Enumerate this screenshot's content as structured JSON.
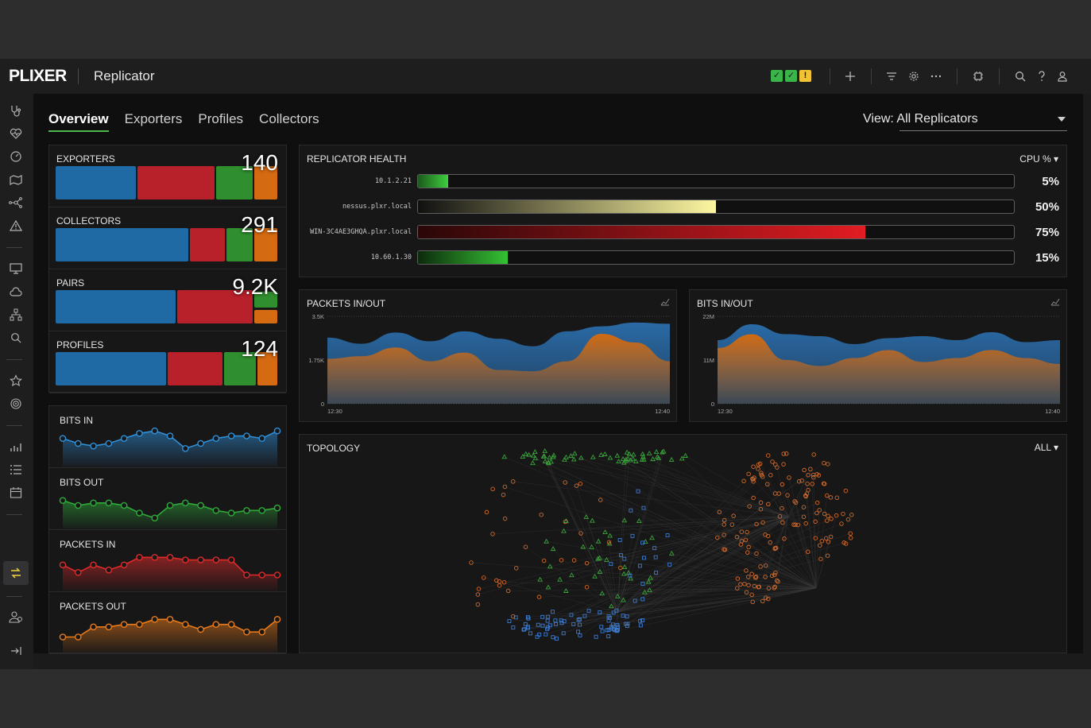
{
  "app": {
    "logo": "PLIXER",
    "title": "Replicator"
  },
  "header": {
    "status": [
      {
        "state": "ok",
        "glyph": "✓"
      },
      {
        "state": "ok",
        "glyph": "✓"
      },
      {
        "state": "warning",
        "glyph": "!"
      }
    ],
    "icons": [
      "plus-icon",
      "filter-icon",
      "gear-icon",
      "more-icon",
      "chip-icon",
      "search-icon",
      "help-icon",
      "user-icon"
    ]
  },
  "tabs": [
    "Overview",
    "Exporters",
    "Profiles",
    "Collectors"
  ],
  "active_tab": "Overview",
  "view": {
    "label": "View: All Replicators"
  },
  "colors": {
    "blue": "#1f6aa5",
    "red": "#b8202a",
    "green": "#2f8f2f",
    "orange": "#d46a12",
    "accent": "#4cbb4c"
  },
  "stats": [
    {
      "label": "EXPORTERS",
      "value": "140",
      "segments": [
        {
          "color": "blue",
          "frac": 0.365
        },
        {
          "color": "red",
          "frac": 0.355
        },
        {
          "color": "green",
          "frac": 0.17
        },
        {
          "color": "orange",
          "frac": 0.11
        }
      ]
    },
    {
      "label": "COLLECTORS",
      "value": "291",
      "segments": [
        {
          "color": "blue",
          "frac": 0.6
        },
        {
          "color": "red",
          "frac": 0.165
        },
        {
          "color": "green",
          "frac": 0.125
        },
        {
          "color": "orange",
          "frac": 0.11
        }
      ]
    },
    {
      "label": "PAIRS",
      "value": "9.2K",
      "segments": [
        {
          "color": "blue",
          "frac": 0.545
        },
        {
          "color": "red",
          "frac": 0.345
        },
        {
          "color": "green+orange",
          "frac": 0.11
        }
      ]
    },
    {
      "label": "PROFILES",
      "value": "124",
      "segments": [
        {
          "color": "blue",
          "frac": 0.5
        },
        {
          "color": "red",
          "frac": 0.255
        },
        {
          "color": "green",
          "frac": 0.15
        },
        {
          "color": "orange",
          "frac": 0.095
        }
      ]
    }
  ],
  "sparklines": [
    {
      "label": "BITS IN",
      "color": "#2f8fd8",
      "values": [
        8,
        6,
        5,
        6,
        8,
        10,
        11,
        9,
        4,
        6,
        8,
        9,
        9,
        8,
        11
      ]
    },
    {
      "label": "BITS OUT",
      "color": "#2faa3a",
      "values": [
        8,
        6,
        7,
        7,
        6,
        3,
        1,
        6,
        7,
        6,
        4,
        3,
        4,
        4,
        5
      ]
    },
    {
      "label": "PACKETS IN",
      "color": "#e02a2a",
      "values": [
        7,
        4,
        7,
        5,
        7,
        10,
        10,
        10,
        9,
        9,
        9,
        9,
        3,
        3,
        3
      ]
    },
    {
      "label": "PACKETS OUT",
      "color": "#e87a1a",
      "values": [
        3,
        3,
        7,
        7,
        8,
        8,
        10,
        10,
        8,
        6,
        8,
        8,
        5,
        5,
        10
      ]
    }
  ],
  "health": {
    "title": "REPLICATOR HEALTH",
    "metric": "CPU %",
    "rows": [
      {
        "host": "10.1.2.21",
        "pct": 5,
        "pct_label": "5%",
        "from": "#1a5a1a",
        "to": "#3fcf3f"
      },
      {
        "host": "nessus.plxr.local",
        "pct": 50,
        "pct_label": "50%",
        "from": "#101010",
        "to": "#fdf7a0"
      },
      {
        "host": "WIN-3C4AE3GHQA.plxr.local",
        "pct": 75,
        "pct_label": "75%",
        "from": "#2a0708",
        "to": "#e21c22"
      },
      {
        "host": "10.60.1.30",
        "pct": 15,
        "pct_label": "15%",
        "from": "#0c2a0c",
        "to": "#34c234"
      }
    ]
  },
  "chart_data": [
    {
      "type": "area",
      "title": "PACKETS IN/OUT",
      "y_ticks": [
        "3.5K",
        "1.75K",
        "0"
      ],
      "x_ticks": [
        "12:30",
        "12:40"
      ],
      "ylim": [
        0,
        3500
      ],
      "series": [
        {
          "color": "#2a6aa6",
          "values": [
            2650,
            2400,
            2850,
            2500,
            2900,
            2600,
            2300,
            2900,
            3100,
            3250,
            3200
          ]
        },
        {
          "color": "#d06a12",
          "values": [
            1800,
            1900,
            2250,
            1700,
            2050,
            1350,
            1300,
            1700,
            2800,
            2450,
            1700
          ]
        }
      ]
    },
    {
      "type": "area",
      "title": "BITS IN/OUT",
      "y_ticks": [
        "22M",
        "11M",
        "0"
      ],
      "x_ticks": [
        "12:30",
        "12:40"
      ],
      "ylim": [
        0,
        22000000
      ],
      "series": [
        {
          "color": "#2a6aa6",
          "values": [
            16000000,
            20000000,
            17500000,
            17000000,
            15000000,
            16500000,
            17000000,
            16000000,
            18000000,
            15500000,
            16000000
          ]
        },
        {
          "color": "#d06a12",
          "values": [
            14000000,
            17500000,
            11000000,
            9500000,
            11500000,
            13500000,
            10500000,
            11500000,
            13500000,
            11500000,
            10000000
          ]
        }
      ]
    }
  ],
  "topology": {
    "title": "TOPOLOGY",
    "filter": "ALL"
  },
  "sidebar_icons": [
    "stethoscope-icon",
    "heart-pulse-icon",
    "gauge-icon",
    "map-icon",
    "network-icon",
    "alert-icon",
    "monitor-icon",
    "cloud-icon",
    "hierarchy-icon",
    "search-icon",
    "star-icon",
    "target-icon",
    "chart-icon",
    "list-icon",
    "calendar-icon",
    "replicator-icon",
    "users-icon",
    "collapse-icon"
  ]
}
